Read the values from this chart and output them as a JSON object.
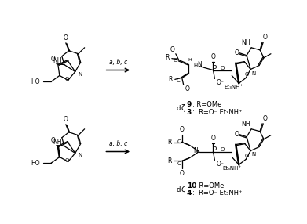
{
  "background_color": "#ffffff",
  "figsize": [
    3.91,
    2.86
  ],
  "dpi": 100,
  "arrow_text": "a, b, c",
  "top_label_d": "d",
  "top_label_zeta": "ζ",
  "top_line1_num": "9",
  "top_line1_rest": ": R=OMe",
  "top_line2_num": "3",
  "top_line2_rest": ":  R=O⁻ Et₃NH⁺",
  "bottom_label_d": "d",
  "bottom_label_zeta": "ζ",
  "bottom_line1_num": "10",
  "bottom_line1_rest": ": R=OMe",
  "bottom_line2_num": "4",
  "bottom_line2_rest": ":  R=O⁻ Et₃NH⁺"
}
